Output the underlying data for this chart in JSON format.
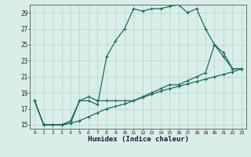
{
  "xlabel": "Humidex (Indice chaleur)",
  "bg_color": "#daeee9",
  "grid_color": "#b8d8d2",
  "line_color": "#1a6b5a",
  "xlim": [
    -0.5,
    23.5
  ],
  "ylim": [
    14.5,
    30.0
  ],
  "yticks": [
    15,
    17,
    19,
    21,
    23,
    25,
    27,
    29
  ],
  "xticks": [
    0,
    1,
    2,
    3,
    4,
    5,
    6,
    7,
    8,
    9,
    10,
    11,
    12,
    13,
    14,
    15,
    16,
    17,
    18,
    19,
    20,
    21,
    22,
    23
  ],
  "line1_x": [
    0,
    1,
    2,
    3,
    4,
    5,
    6,
    7,
    8,
    9,
    10,
    11,
    12,
    13,
    14,
    15,
    16,
    17,
    18,
    19,
    20,
    21,
    22,
    23
  ],
  "line1_y": [
    18,
    15,
    15,
    15,
    15.2,
    15.5,
    16.0,
    16.5,
    17.0,
    17.3,
    17.6,
    18.0,
    18.4,
    18.8,
    19.2,
    19.5,
    19.8,
    20.1,
    20.4,
    20.7,
    21.0,
    21.3,
    21.6,
    22.0
  ],
  "line2_x": [
    0,
    1,
    2,
    3,
    4,
    5,
    6,
    7,
    8,
    9,
    10,
    11,
    12,
    13,
    14,
    15,
    16,
    17,
    18,
    19,
    20,
    21,
    22,
    23
  ],
  "line2_y": [
    18,
    15,
    15,
    15,
    15.5,
    18.0,
    18.0,
    17.5,
    23.5,
    25.5,
    27.0,
    29.5,
    29.2,
    29.5,
    29.5,
    29.8,
    30.0,
    29.0,
    29.5,
    27.0,
    25.0,
    24.0,
    22.0,
    22.0
  ],
  "line3_x": [
    0,
    1,
    2,
    3,
    4,
    5,
    6,
    7,
    8,
    9,
    10,
    11,
    12,
    13,
    14,
    15,
    16,
    17,
    18,
    19,
    20,
    21,
    22,
    23
  ],
  "line3_y": [
    18,
    15,
    15,
    15,
    15.2,
    18.0,
    18.5,
    18.0,
    18.0,
    18.0,
    18.0,
    18.0,
    18.5,
    19.0,
    19.5,
    20.0,
    20.0,
    20.5,
    21.0,
    21.5,
    25.0,
    23.5,
    22.0,
    22.0
  ]
}
